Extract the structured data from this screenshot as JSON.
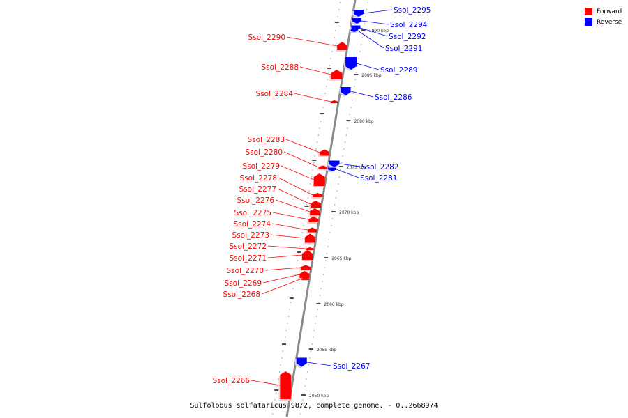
{
  "legend": {
    "forward_label": "Forward",
    "reverse_label": "Reverse",
    "forward_color": "#ff0000",
    "reverse_color": "#0000ff"
  },
  "caption": "Sulfolobus solfataricus 98/2, complete genome. - 0..2668974",
  "axis": {
    "unit": "kbp",
    "ticks": [
      {
        "label": "2090 kbp"
      },
      {
        "label": "2085 kbp"
      },
      {
        "label": "2080 kbp"
      },
      {
        "label": "2075 kbp"
      },
      {
        "label": "2070 kbp"
      },
      {
        "label": "2065 kbp"
      },
      {
        "label": "2060 kbp"
      },
      {
        "label": "2055 kbp"
      },
      {
        "label": "2050 kbp"
      }
    ]
  },
  "genes": [
    {
      "name": "Ssol_2295",
      "strand": "reverse"
    },
    {
      "name": "Ssol_2294",
      "strand": "reverse"
    },
    {
      "name": "Ssol_2292",
      "strand": "reverse"
    },
    {
      "name": "Ssol_2291",
      "strand": "reverse"
    },
    {
      "name": "Ssol_2289",
      "strand": "reverse"
    },
    {
      "name": "Ssol_2286",
      "strand": "reverse"
    },
    {
      "name": "Ssol_2282",
      "strand": "reverse"
    },
    {
      "name": "Ssol_2281",
      "strand": "reverse"
    },
    {
      "name": "Ssol_2267",
      "strand": "reverse"
    },
    {
      "name": "Ssol_2290",
      "strand": "forward"
    },
    {
      "name": "Ssol_2288",
      "strand": "forward"
    },
    {
      "name": "Ssol_2284",
      "strand": "forward"
    },
    {
      "name": "Ssol_2283",
      "strand": "forward"
    },
    {
      "name": "Ssol_2280",
      "strand": "forward"
    },
    {
      "name": "Ssol_2279",
      "strand": "forward"
    },
    {
      "name": "Ssol_2278",
      "strand": "forward"
    },
    {
      "name": "Ssol_2277",
      "strand": "forward"
    },
    {
      "name": "Ssol_2276",
      "strand": "forward"
    },
    {
      "name": "Ssol_2275",
      "strand": "forward"
    },
    {
      "name": "Ssol_2274",
      "strand": "forward"
    },
    {
      "name": "Ssol_2273",
      "strand": "forward"
    },
    {
      "name": "Ssol_2272",
      "strand": "forward"
    },
    {
      "name": "Ssol_2271",
      "strand": "forward"
    },
    {
      "name": "Ssol_2270",
      "strand": "forward"
    },
    {
      "name": "Ssol_2269",
      "strand": "forward"
    },
    {
      "name": "Ssol_2268",
      "strand": "forward"
    },
    {
      "name": "Ssol_2266",
      "strand": "forward"
    }
  ]
}
